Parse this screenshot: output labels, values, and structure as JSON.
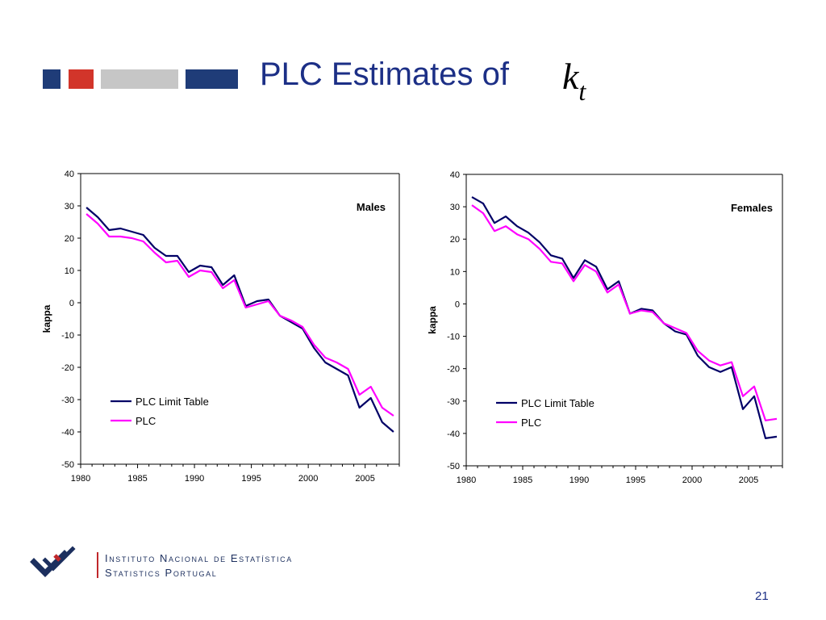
{
  "slide": {
    "title": "PLC Estimates of",
    "math_base": "k",
    "math_sub": "t",
    "page_number": "21",
    "decor_colors": [
      "#1f3c78",
      "#d2352a",
      "#c6c6c6",
      "#1f3c78"
    ]
  },
  "logo": {
    "line1": "Instituto Nacional de Estatística",
    "line2": "Statistics Portugal"
  },
  "chart_data": [
    {
      "type": "line",
      "title": "Males",
      "ylabel": "kappa",
      "xlabel": "",
      "xlim": [
        1980,
        2008
      ],
      "ylim": [
        -50,
        40
      ],
      "xticks": [
        "1980",
        "1985",
        "1990",
        "1995",
        "2000",
        "2005"
      ],
      "yticks": [
        "40",
        "30",
        "20",
        "10",
        "0",
        "-10",
        "-20",
        "-30",
        "-40",
        "-50"
      ],
      "grid": false,
      "legend": "lower-left",
      "x": [
        1980.5,
        1981.5,
        1982.5,
        1983.5,
        1984.5,
        1985.5,
        1986.5,
        1987.5,
        1988.5,
        1989.5,
        1990.5,
        1991.5,
        1992.5,
        1993.5,
        1994.5,
        1995.5,
        1996.5,
        1997.5,
        1998.5,
        1999.5,
        2000.5,
        2001.5,
        2002.5,
        2003.5,
        2004.5,
        2005.5,
        2006.5,
        2007.5
      ],
      "series": [
        {
          "name": "PLC Limit Table",
          "color": "#000066",
          "values": [
            29.5,
            26.5,
            22.5,
            23,
            22,
            21,
            17,
            14.5,
            14.5,
            9.5,
            11.5,
            11,
            5.5,
            8.5,
            -1,
            0.5,
            1,
            -4,
            -6,
            -8,
            -14,
            -18.5,
            -20.5,
            -22.5,
            -32.5,
            -29.5,
            -37,
            -40
          ]
        },
        {
          "name": "PLC",
          "color": "#ff00ff",
          "values": [
            27.5,
            24.5,
            20.5,
            20.5,
            20,
            19,
            15.5,
            12.5,
            13,
            8,
            10,
            9.5,
            4.5,
            7,
            -1.5,
            -0.5,
            0.5,
            -4,
            -5.5,
            -7.5,
            -13,
            -17,
            -18.5,
            -20.5,
            -28.5,
            -26,
            -32.5,
            -35
          ]
        }
      ]
    },
    {
      "type": "line",
      "title": "Females",
      "ylabel": "kappa",
      "xlabel": "",
      "xlim": [
        1980,
        2008
      ],
      "ylim": [
        -50,
        40
      ],
      "xticks": [
        "1980",
        "1985",
        "1990",
        "1995",
        "2000",
        "2005"
      ],
      "yticks": [
        "40",
        "30",
        "20",
        "10",
        "0",
        "-10",
        "-20",
        "-30",
        "-40",
        "-50"
      ],
      "grid": false,
      "legend": "lower-left",
      "x": [
        1980.5,
        1981.5,
        1982.5,
        1983.5,
        1984.5,
        1985.5,
        1986.5,
        1987.5,
        1988.5,
        1989.5,
        1990.5,
        1991.5,
        1992.5,
        1993.5,
        1994.5,
        1995.5,
        1996.5,
        1997.5,
        1998.5,
        1999.5,
        2000.5,
        2001.5,
        2002.5,
        2003.5,
        2004.5,
        2005.5,
        2006.5,
        2007.5
      ],
      "series": [
        {
          "name": "PLC Limit Table",
          "color": "#000066",
          "values": [
            33,
            31,
            25,
            27,
            24,
            22,
            19,
            15,
            14,
            8,
            13.5,
            11.5,
            4.5,
            7,
            -3,
            -1.5,
            -2,
            -6,
            -8.5,
            -9.5,
            -16,
            -19.5,
            -21,
            -19.5,
            -32.5,
            -28.5,
            -41.5,
            -41
          ]
        },
        {
          "name": "PLC",
          "color": "#ff00ff",
          "values": [
            30.5,
            28,
            22.5,
            24,
            21.5,
            20,
            17,
            13,
            12.5,
            7,
            12,
            10,
            3.5,
            6,
            -3,
            -2,
            -2.5,
            -6,
            -7.5,
            -9,
            -14.5,
            -17.5,
            -19,
            -18,
            -28.5,
            -25.5,
            -36,
            -35.5
          ]
        }
      ]
    }
  ]
}
